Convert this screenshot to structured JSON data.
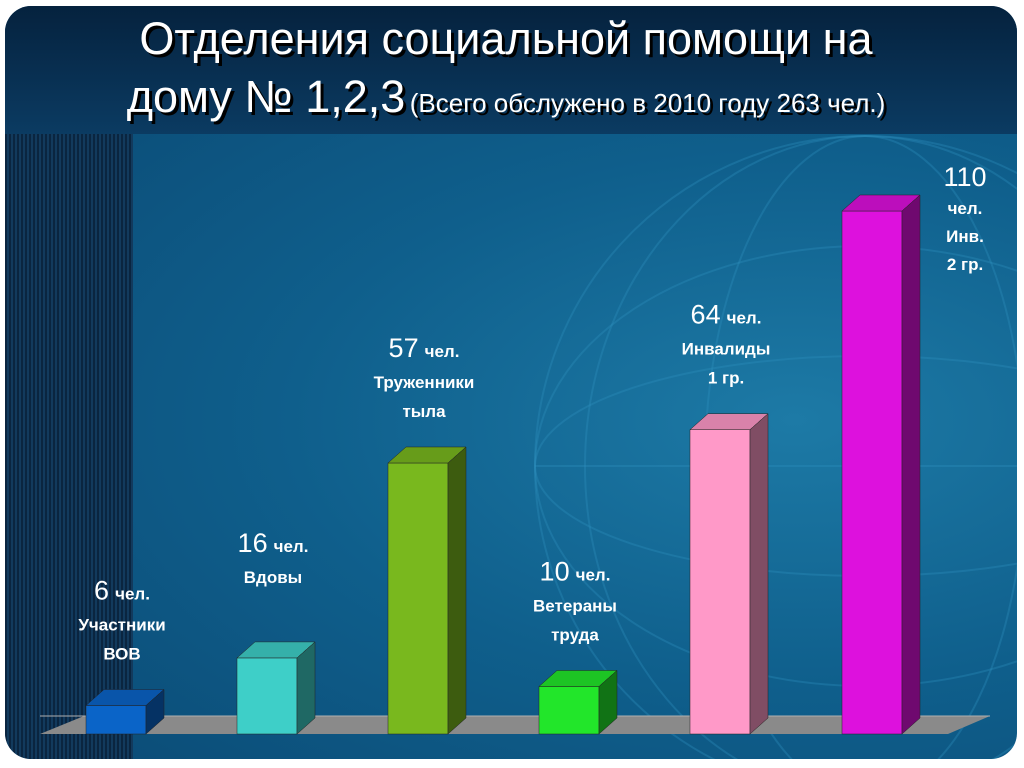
{
  "title": {
    "line1": "Отделения социальной помощи на",
    "line2_main": "дому № 1,2,3",
    "line2_sub": "(Всего обслужено в 2010 году 263 чел.)"
  },
  "colors": {
    "background": "#0f5f8c",
    "header": "#05223e",
    "floor": "#8a8a8a"
  },
  "chart_data": {
    "type": "bar",
    "categories": [
      "Участники ВОВ",
      "Вдовы",
      "Труженники тыла",
      "Ветераны труда",
      "Инвалиды 1 гр.",
      "Инв. 2 гр."
    ],
    "values": [
      6,
      16,
      57,
      10,
      64,
      110
    ],
    "ylim": [
      0,
      110
    ],
    "grid": false,
    "colors": [
      "#0a64c8",
      "#3ecfc8",
      "#79b81e",
      "#22e62a",
      "#ff99c8",
      "#dd11dd"
    ],
    "labels": [
      {
        "num": "6",
        "lines": [
          "чел.",
          "Участники",
          "ВОВ"
        ]
      },
      {
        "num": "16",
        "lines": [
          "чел.",
          "Вдовы"
        ]
      },
      {
        "num": "57",
        "lines": [
          "чел.",
          "Труженники",
          "тыла"
        ]
      },
      {
        "num": "10",
        "lines": [
          "чел.",
          "Ветераны",
          "труда"
        ]
      },
      {
        "num": "64",
        "lines": [
          "чел.",
          "Инвалиды",
          "1 гр."
        ]
      },
      {
        "num": "110",
        "lines": [
          "чел.",
          "Инв.",
          "2 гр."
        ]
      }
    ]
  }
}
